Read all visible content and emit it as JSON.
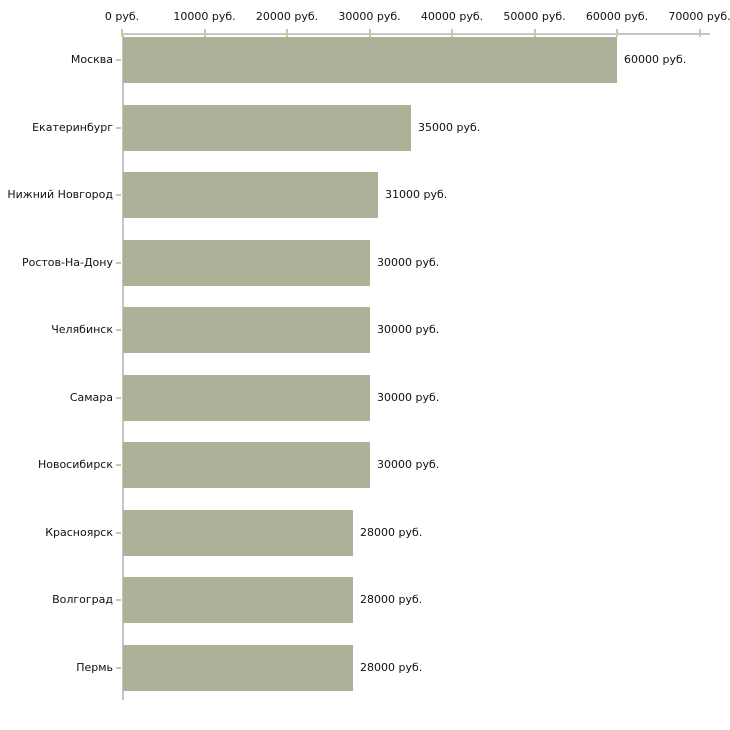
{
  "chart_data": {
    "type": "bar",
    "orientation": "horizontal",
    "title": "",
    "xlabel": "",
    "ylabel": "",
    "unit": "руб.",
    "categories": [
      "Москва",
      "Екатеринбург",
      "Нижний Новгород",
      "Ростов-На-Дону",
      "Челябинск",
      "Самара",
      "Новосибирск",
      "Красноярск",
      "Волгоград",
      "Пермь"
    ],
    "values": [
      60000,
      35000,
      31000,
      30000,
      30000,
      30000,
      30000,
      28000,
      28000,
      28000
    ],
    "value_labels": [
      "60000 руб.",
      "35000 руб.",
      "31000 руб.",
      "30000 руб.",
      "30000 руб.",
      "30000 руб.",
      "30000 руб.",
      "28000 руб.",
      "28000 руб.",
      "28000 руб."
    ],
    "x_axis": {
      "position": "top",
      "min": 0,
      "max": 70000,
      "ticks": [
        0,
        10000,
        20000,
        30000,
        40000,
        50000,
        60000,
        70000
      ],
      "tick_labels": [
        "0 руб.",
        "10000 руб.",
        "20000 руб.",
        "30000 руб.",
        "40000 руб.",
        "50000 руб.",
        "60000 руб.",
        "70000 руб."
      ]
    },
    "grid": false,
    "legend": false,
    "colors": {
      "bar_fill": "#acb197",
      "axis_line": "#c6c6c6",
      "tick_mark": "#c9cb9c",
      "label_text": "#111111",
      "background": "#ffffff"
    }
  }
}
